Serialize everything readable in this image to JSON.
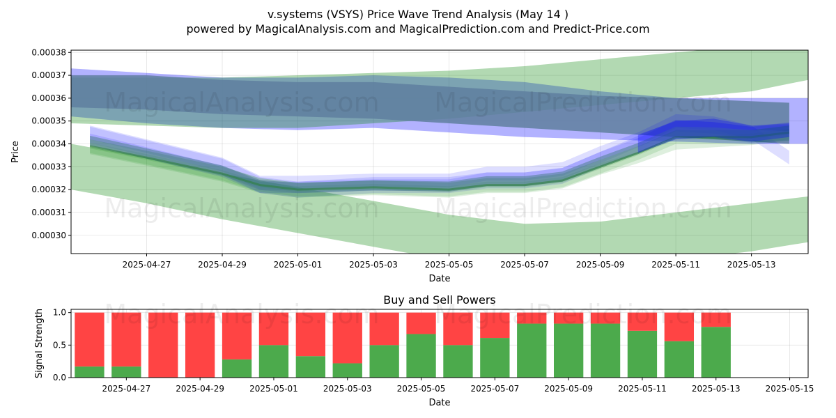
{
  "title_line1": "v.systems (VSYS) Price Wave Trend Analysis (May 14 )",
  "title_line2": "powered by MagicalAnalysis.com and MagicalPrediction.com and Predict-Price.com",
  "watermarks": [
    "MagicalAnalysis.com",
    "MagicalPrediction.com"
  ],
  "chart_data": [
    {
      "type": "area",
      "title": "",
      "xlabel": "Date",
      "ylabel": "Price",
      "x_range": [
        "2025-04-25 00:00",
        "2025-05-14 12:00"
      ],
      "ylim": [
        0.000292,
        0.000381
      ],
      "x_ticks": [
        "2025-04-27",
        "2025-04-29",
        "2025-05-01",
        "2025-05-03",
        "2025-05-05",
        "2025-05-07",
        "2025-05-09",
        "2025-05-11",
        "2025-05-13"
      ],
      "y_ticks": [
        "0.00030",
        "0.00031",
        "0.00032",
        "0.00033",
        "0.00034",
        "0.00035",
        "0.00036",
        "0.00037",
        "0.00038"
      ],
      "grid": true,
      "colors": {
        "green": "#008000",
        "blue": "#0000ff",
        "dark_band": "#5f7f9f"
      },
      "wide_bands": [
        {
          "color": "blue",
          "opacity": 0.3,
          "dates": [
            "2025-04-25",
            "2025-04-27",
            "2025-04-29",
            "2025-05-01",
            "2025-05-03",
            "2025-05-05",
            "2025-05-07",
            "2025-05-09",
            "2025-05-11",
            "2025-05-13",
            "2025-05-14 12:00"
          ],
          "upper": [
            0.000373,
            0.000371,
            0.000369,
            0.000369,
            0.00037,
            0.000369,
            0.000367,
            0.000363,
            0.00036,
            0.00036,
            0.00036
          ],
          "lower": [
            0.000352,
            0.000349,
            0.000347,
            0.000346,
            0.000347,
            0.000345,
            0.000343,
            0.000342,
            0.000341,
            0.00034,
            0.00034
          ]
        },
        {
          "color": "green",
          "opacity": 0.3,
          "dates": [
            "2025-04-25",
            "2025-04-27",
            "2025-04-29",
            "2025-05-01",
            "2025-05-03",
            "2025-05-05",
            "2025-05-07",
            "2025-05-09",
            "2025-05-11",
            "2025-05-13",
            "2025-05-14 12:00"
          ],
          "upper": [
            0.000369,
            0.000369,
            0.000369,
            0.00037,
            0.000371,
            0.000372,
            0.000374,
            0.000377,
            0.00038,
            0.000383,
            0.000388
          ],
          "lower": [
            0.000349,
            0.000348,
            0.000347,
            0.000347,
            0.000349,
            0.000351,
            0.000354,
            0.000357,
            0.00036,
            0.000363,
            0.000368
          ]
        },
        {
          "color": "green",
          "opacity": 0.3,
          "dates": [
            "2025-04-25",
            "2025-04-27",
            "2025-04-29",
            "2025-05-01",
            "2025-05-03",
            "2025-05-05",
            "2025-05-07",
            "2025-05-09",
            "2025-05-11",
            "2025-05-13",
            "2025-05-14 12:00"
          ],
          "upper": [
            0.00034,
            0.000334,
            0.000327,
            0.000321,
            0.000315,
            0.000309,
            0.000305,
            0.000306,
            0.00031,
            0.000314,
            0.000317
          ],
          "lower": [
            0.00032,
            0.000314,
            0.000307,
            0.000301,
            0.000295,
            0.000289,
            0.000286,
            0.000286,
            0.000289,
            0.000293,
            0.000297
          ]
        }
      ],
      "dark_band": {
        "dates": [
          "2025-04-25",
          "2025-04-27",
          "2025-04-29",
          "2025-05-01",
          "2025-05-03",
          "2025-05-05",
          "2025-05-07",
          "2025-05-09",
          "2025-05-11",
          "2025-05-14"
        ],
        "upper": [
          0.00037,
          0.00037,
          0.000368,
          0.000367,
          0.000367,
          0.000365,
          0.000363,
          0.000361,
          0.00036,
          0.000358
        ],
        "lower": [
          0.000356,
          0.000355,
          0.000353,
          0.000352,
          0.000351,
          0.000349,
          0.000347,
          0.000345,
          0.000343,
          0.00034
        ]
      },
      "wave_dates": [
        "2025-04-25 12:00",
        "2025-04-27",
        "2025-04-29",
        "2025-04-30",
        "2025-05-01",
        "2025-05-03",
        "2025-05-05",
        "2025-05-06",
        "2025-05-07",
        "2025-05-08",
        "2025-05-09",
        "2025-05-10",
        "2025-05-11",
        "2025-05-12",
        "2025-05-13",
        "2025-05-14"
      ],
      "wave_ensemble": [
        {
          "color": "blue",
          "center": [
            0.000344,
            0.000338,
            0.00033,
            0.000322,
            0.00032,
            0.000322,
            0.000322,
            0.000324,
            0.000324,
            0.000326,
            0.000333,
            0.000339,
            0.000347,
            0.000346,
            0.000344,
            0.000345
          ],
          "half_width": 3.5e-06
        },
        {
          "color": "blue",
          "center": [
            0.000345,
            0.000339,
            0.000331,
            0.000323,
            0.000323,
            0.000324,
            0.000324,
            0.000327,
            0.000327,
            0.000329,
            0.000336,
            0.000342,
            0.00035,
            0.000349,
            0.000345,
            0.000334
          ],
          "half_width": 3e-06
        },
        {
          "color": "blue",
          "center": [
            0.000342,
            0.000336,
            0.000328,
            0.000321,
            0.000321,
            0.000322,
            0.000322,
            0.000325,
            0.000325,
            0.000327,
            0.000334,
            0.000341,
            0.000348,
            0.000347,
            0.000345,
            0.000347
          ],
          "half_width": 2.5e-06
        },
        {
          "color": "green",
          "center": [
            0.000339,
            0.000334,
            0.000327,
            0.000322,
            0.00032,
            0.000321,
            0.00032,
            0.000322,
            0.000322,
            0.000324,
            0.00033,
            0.000336,
            0.000343,
            0.000343,
            0.000343,
            0.000345
          ],
          "half_width": 3e-06
        },
        {
          "color": "green",
          "center": [
            0.000338,
            0.000333,
            0.000326,
            0.000321,
            0.000319,
            0.00032,
            0.000319,
            0.000321,
            0.000321,
            0.000323,
            0.000329,
            0.000334,
            0.00034,
            0.000341,
            0.000342,
            0.000344
          ],
          "half_width": 2.5e-06
        },
        {
          "color": "green",
          "center": [
            0.00034,
            0.000335,
            0.000328,
            0.000323,
            0.000321,
            0.000322,
            0.000321,
            0.000323,
            0.000323,
            0.000325,
            0.000331,
            0.000337,
            0.000344,
            0.000344,
            0.000344,
            0.000346
          ],
          "half_width": 2e-06
        }
      ],
      "wave_highlight": {
        "color": "blue",
        "dates": [
          "2025-05-10",
          "2025-05-11",
          "2025-05-12",
          "2025-05-13",
          "2025-05-14"
        ],
        "upper": [
          0.000344,
          0.00035,
          0.000351,
          0.000348,
          0.000349
        ],
        "lower": [
          0.000336,
          0.000342,
          0.000343,
          0.000341,
          0.000343
        ]
      }
    },
    {
      "type": "bar",
      "title": "Buy and Sell Powers",
      "xlabel": "Date",
      "ylabel": "Signal Strength",
      "x_range": [
        "2025-04-25 12:00",
        "2025-05-15 12:00"
      ],
      "ylim": [
        0,
        1.05
      ],
      "x_ticks": [
        "2025-04-27",
        "2025-04-29",
        "2025-05-01",
        "2025-05-03",
        "2025-05-05",
        "2025-05-07",
        "2025-05-09",
        "2025-05-11",
        "2025-05-13",
        "2025-05-15"
      ],
      "y_ticks": [
        "0.0",
        "0.5",
        "1.0"
      ],
      "grid": true,
      "colors": {
        "buy": "#4caa4c",
        "sell": "#ff4444"
      },
      "categories": [
        "2025-04-26",
        "2025-04-27",
        "2025-04-28",
        "2025-04-29",
        "2025-04-30",
        "2025-05-01",
        "2025-05-02",
        "2025-05-03",
        "2025-05-04",
        "2025-05-05",
        "2025-05-06",
        "2025-05-07",
        "2025-05-08",
        "2025-05-09",
        "2025-05-10",
        "2025-05-11",
        "2025-05-12",
        "2025-05-13"
      ],
      "series": [
        {
          "values": [
            0.17,
            0.17,
            0.0,
            0.0,
            0.28,
            0.5,
            0.33,
            0.22,
            0.5,
            0.67,
            0.5,
            0.61,
            0.83,
            0.83,
            0.83,
            0.72,
            0.56,
            0.78
          ]
        },
        {
          "values": [
            0.83,
            0.83,
            1.0,
            1.0,
            0.72,
            0.5,
            0.67,
            0.78,
            0.5,
            0.33,
            0.5,
            0.39,
            0.17,
            0.17,
            0.17,
            0.28,
            0.44,
            0.22
          ]
        }
      ]
    }
  ]
}
